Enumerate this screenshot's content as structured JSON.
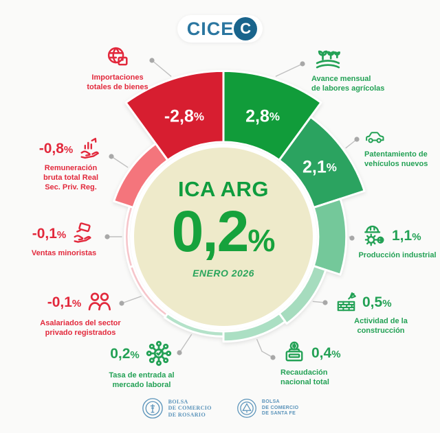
{
  "header": {
    "logo_text": "CICE",
    "logo_badge": "C"
  },
  "center": {
    "title": "ICA ARG",
    "value": "0,2%",
    "subtitle": "ENERO 2026"
  },
  "chart_data": {
    "type": "radial-bar",
    "unit": "%",
    "direction": "clockwise-from-top",
    "sector_degrees": 36,
    "title": "ICA ARG",
    "center_value": "0,2%",
    "subtitle": "ENERO 2026",
    "items": [
      {
        "id": "avance-agricola",
        "label": "Avance mensual de labores agrícolas",
        "label_lines": [
          "Avance mensual",
          "de labores agrícolas"
        ],
        "value": 2.8,
        "display": "2,8%",
        "color": "#119c3a",
        "icon": "crops-icon",
        "value_inside": true
      },
      {
        "id": "patentamiento",
        "label": "Patentamiento de vehículos nuevos",
        "label_lines": [
          "Patentamiento de",
          "vehículos nuevos"
        ],
        "value": 2.1,
        "display": "2,1%",
        "color": "#2ba360",
        "icon": "car-icon",
        "value_inside": true
      },
      {
        "id": "produccion-industrial",
        "label": "Producción industrial",
        "label_lines": [
          "Producción industrial"
        ],
        "value": 1.1,
        "display": "1,1%",
        "color": "#74c89a",
        "icon": "industry-icon",
        "value_inside": false
      },
      {
        "id": "construccion",
        "label": "Actividad de la construcción",
        "label_lines": [
          "Actividad de la construcción"
        ],
        "value": 0.5,
        "display": "0,5%",
        "color": "#a6dcbe",
        "icon": "bricks-icon",
        "value_inside": false
      },
      {
        "id": "recaudacion",
        "label": "Recaudación nacional total",
        "label_lines": [
          "Recaudación",
          "nacional total"
        ],
        "value": 0.4,
        "display": "0,4%",
        "color": "#abdfc3",
        "icon": "collection-box-icon",
        "value_inside": false
      },
      {
        "id": "tasa-entrada-laboral",
        "label": "Tasa de entrada al mercado laboral",
        "label_lines": [
          "Tasa de entrada al",
          "mercado laboral"
        ],
        "value": 0.2,
        "display": "0,2%",
        "color": "#b4e2c9",
        "icon": "network-icon",
        "value_inside": false
      },
      {
        "id": "asalariados",
        "label": "Asalariados del sector privado registrados",
        "label_lines": [
          "Asalariados del sector",
          "privado registrados"
        ],
        "value": -0.1,
        "display": "-0,1%",
        "color": "#f6c5ca",
        "icon": "people-icon",
        "value_inside": false
      },
      {
        "id": "ventas-minoristas",
        "label": "Ventas minoristas",
        "label_lines": [
          "Ventas minoristas"
        ],
        "value": -0.1,
        "display": "-0,1%",
        "color": "#f6c5ca",
        "icon": "hand-card-icon",
        "value_inside": false
      },
      {
        "id": "remuneracion",
        "label": "Remuneración bruta total Real Sec. Priv. Reg.",
        "label_lines": [
          "Remuneración",
          "bruta total Real",
          "Sec. Priv. Reg."
        ],
        "value": -0.8,
        "display": "-0,8%",
        "color": "#f4757c",
        "icon": "hand-chart-icon",
        "value_inside": false
      },
      {
        "id": "importaciones",
        "label": "Importaciones totales de bienes",
        "label_lines": [
          "Importaciones",
          "totales de bienes"
        ],
        "value": -2.8,
        "display": "-2,8%",
        "color": "#d71e30",
        "icon": "globe-box-icon",
        "value_inside": true
      }
    ]
  },
  "footer": {
    "logos": [
      {
        "lines": [
          "BOLSA",
          "DE COMERCIO",
          "DE ROSARIO"
        ]
      },
      {
        "lines": [
          "BOLSA",
          "DE COMERCIO",
          "DE SANTA FE"
        ]
      }
    ]
  },
  "colors": {
    "negative_text": "#e2293c",
    "positive_text": "#23a155",
    "center_fill": "#eeeaca",
    "background": "#fafaf9",
    "leader_line": "#bfbfbf",
    "leader_dot": "#a8a8a8",
    "logo_blue": "#2b76a0",
    "logo_badge_bg": "#19648c",
    "footer_blue": "#5a93ba"
  }
}
